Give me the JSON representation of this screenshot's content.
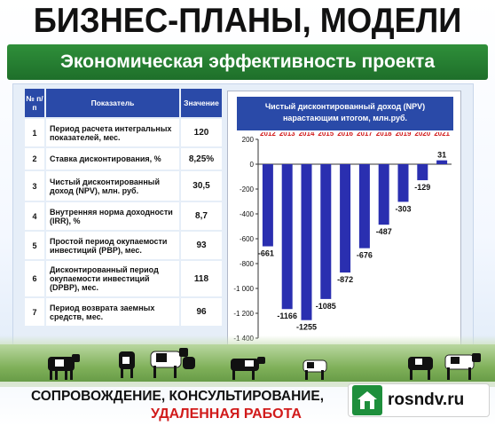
{
  "header": {
    "title": "БИЗНЕС-ПЛАНЫ, МОДЕЛИ",
    "subtitle": "Экономическая эффективность проекта"
  },
  "table": {
    "columns": [
      "№ п/п",
      "Показатель",
      "Значение"
    ],
    "rows": [
      {
        "n": "1",
        "label": "Период расчета интегральных показателей, мес.",
        "value": "120"
      },
      {
        "n": "2",
        "label": "Ставка дисконтирования, %",
        "value": "8,25%"
      },
      {
        "n": "3",
        "label": "Чистый дисконтированный доход (NPV), млн. руб.",
        "value": "30,5"
      },
      {
        "n": "4",
        "label": "Внутренняя норма доходности (IRR), %",
        "value": "8,7"
      },
      {
        "n": "5",
        "label": "Простой период окупаемости инвестиций (PBP), мес.",
        "value": "93"
      },
      {
        "n": "6",
        "label": "Дисконтированный период окупаемости инвестиций (DPBP), мес.",
        "value": "118"
      },
      {
        "n": "7",
        "label": "Период возврата заемных средств, мес.",
        "value": "96"
      }
    ]
  },
  "chart_data": {
    "type": "bar",
    "title": "Чистый дисконтированный доход (NPV) нарастающим итогом, млн.руб.",
    "categories": [
      "2012",
      "2013",
      "2014",
      "2015",
      "2016",
      "2017",
      "2018",
      "2019",
      "2020",
      "2021"
    ],
    "values": [
      -661,
      -1166,
      -1255,
      -1085,
      -872,
      -676,
      -487,
      -303,
      -129,
      31
    ],
    "value_labels": [
      "-661",
      "-1166",
      "-1255",
      "-1085",
      "-872",
      "-676",
      "-487",
      "-303",
      "-129",
      "31"
    ],
    "yticks": [
      "200",
      "0",
      "-200",
      "-400",
      "-600",
      "-800",
      "-1 000",
      "-1 200",
      "-1 400"
    ],
    "ylim": [
      -1400,
      200
    ],
    "xlabel": "",
    "ylabel": "",
    "category_axis": "top",
    "grid": false,
    "bar_color": "#2a2fb0"
  },
  "footer": {
    "line1": "СОПРОВОЖДЕНИЕ, КОНСУЛЬТИРОВАНИЕ,",
    "line2": "УДАЛЕННАЯ РАБОТА"
  },
  "watermark": {
    "site": "rosndv.ru",
    "icon": "house-icon"
  },
  "colors": {
    "banner_green": "#2f8f3a",
    "header_blue": "#2a4aa8",
    "bar_blue": "#2a2fb0",
    "footer_red": "#d11b1b"
  }
}
